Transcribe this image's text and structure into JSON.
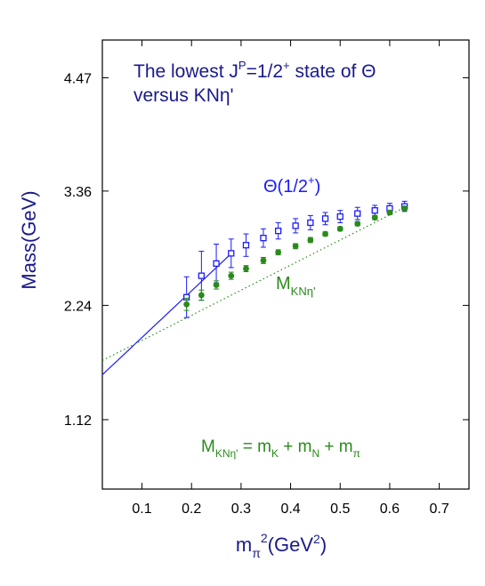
{
  "chart_data": {
    "type": "scatter",
    "title_parts": {
      "line1_a": "The lowest J",
      "line1_sup": "P",
      "line1_b": "=1/2",
      "line1_sup2": "+",
      "line1_c": " state of Θ",
      "line2": "versus  KNη'"
    },
    "ylabel": "Mass(GeV)",
    "xlabel_parts": {
      "a": "m",
      "sub": "π",
      "sup": "2",
      "b": "(GeV",
      "sup2": "2",
      "c": ")"
    },
    "xlim": [
      0.02,
      0.76
    ],
    "ylim": [
      0.44,
      4.84
    ],
    "x_ticks": [
      0.1,
      0.2,
      0.3,
      0.4,
      0.5,
      0.6,
      0.7
    ],
    "x_tick_labels": [
      "0.1",
      "0.2",
      "0.3",
      "0.4",
      "0.5",
      "0.6",
      "0.7"
    ],
    "y_ticks": [
      1.12,
      2.24,
      3.36,
      4.47
    ],
    "y_tick_labels": [
      "1.12",
      "2.24",
      "3.36",
      "4.47"
    ],
    "grid": false,
    "series": [
      {
        "name": "Θ(1/2+)",
        "label_parts": {
          "a": "Θ(1/2",
          "sup": "+",
          "b": ")"
        },
        "color": "#1a1aff",
        "marker": "open-square",
        "x": [
          0.19,
          0.22,
          0.25,
          0.28,
          0.31,
          0.345,
          0.375,
          0.41,
          0.44,
          0.47,
          0.5,
          0.535,
          0.57,
          0.6,
          0.63
        ],
        "y": [
          2.32,
          2.53,
          2.65,
          2.75,
          2.83,
          2.9,
          2.97,
          3.02,
          3.05,
          3.09,
          3.11,
          3.14,
          3.17,
          3.19,
          3.21
        ],
        "err": [
          0.2,
          0.24,
          0.19,
          0.14,
          0.11,
          0.09,
          0.08,
          0.07,
          0.07,
          0.06,
          0.06,
          0.06,
          0.05,
          0.05,
          0.05
        ],
        "fit": {
          "style": "solid",
          "x": [
            0.02,
            0.285
          ],
          "y": [
            1.56,
            2.77
          ]
        }
      },
      {
        "name": "M_KNη'",
        "label_parts": {
          "a": "M",
          "sub": "KNη'"
        },
        "color": "#2a8a1a",
        "marker": "filled-circle",
        "x": [
          0.19,
          0.22,
          0.25,
          0.28,
          0.31,
          0.345,
          0.375,
          0.41,
          0.44,
          0.47,
          0.5,
          0.535,
          0.57,
          0.6,
          0.63
        ],
        "y": [
          2.25,
          2.34,
          2.44,
          2.53,
          2.6,
          2.68,
          2.76,
          2.82,
          2.88,
          2.94,
          2.99,
          3.04,
          3.1,
          3.15,
          3.19
        ],
        "err": [
          0.06,
          0.05,
          0.04,
          0.035,
          0.03,
          0.03,
          0.025,
          0.025,
          0.025,
          0.02,
          0.02,
          0.02,
          0.02,
          0.02,
          0.02
        ],
        "fit": {
          "style": "dotted",
          "x": [
            0.02,
            0.63
          ],
          "y": [
            1.7,
            3.2
          ]
        }
      }
    ],
    "annotation_formula_parts": {
      "a": "M",
      "sub1": "KNη'",
      "b": " = m",
      "sub2": "K",
      "c": " + m",
      "sub3": "N",
      "d": " + m",
      "sub4": "π"
    },
    "colors": {
      "title": "#1a1a8c",
      "axis_label": "#1a1a8c",
      "theta": "#1a1aff",
      "knEta": "#2a8a1a",
      "axes": "#000000"
    }
  }
}
